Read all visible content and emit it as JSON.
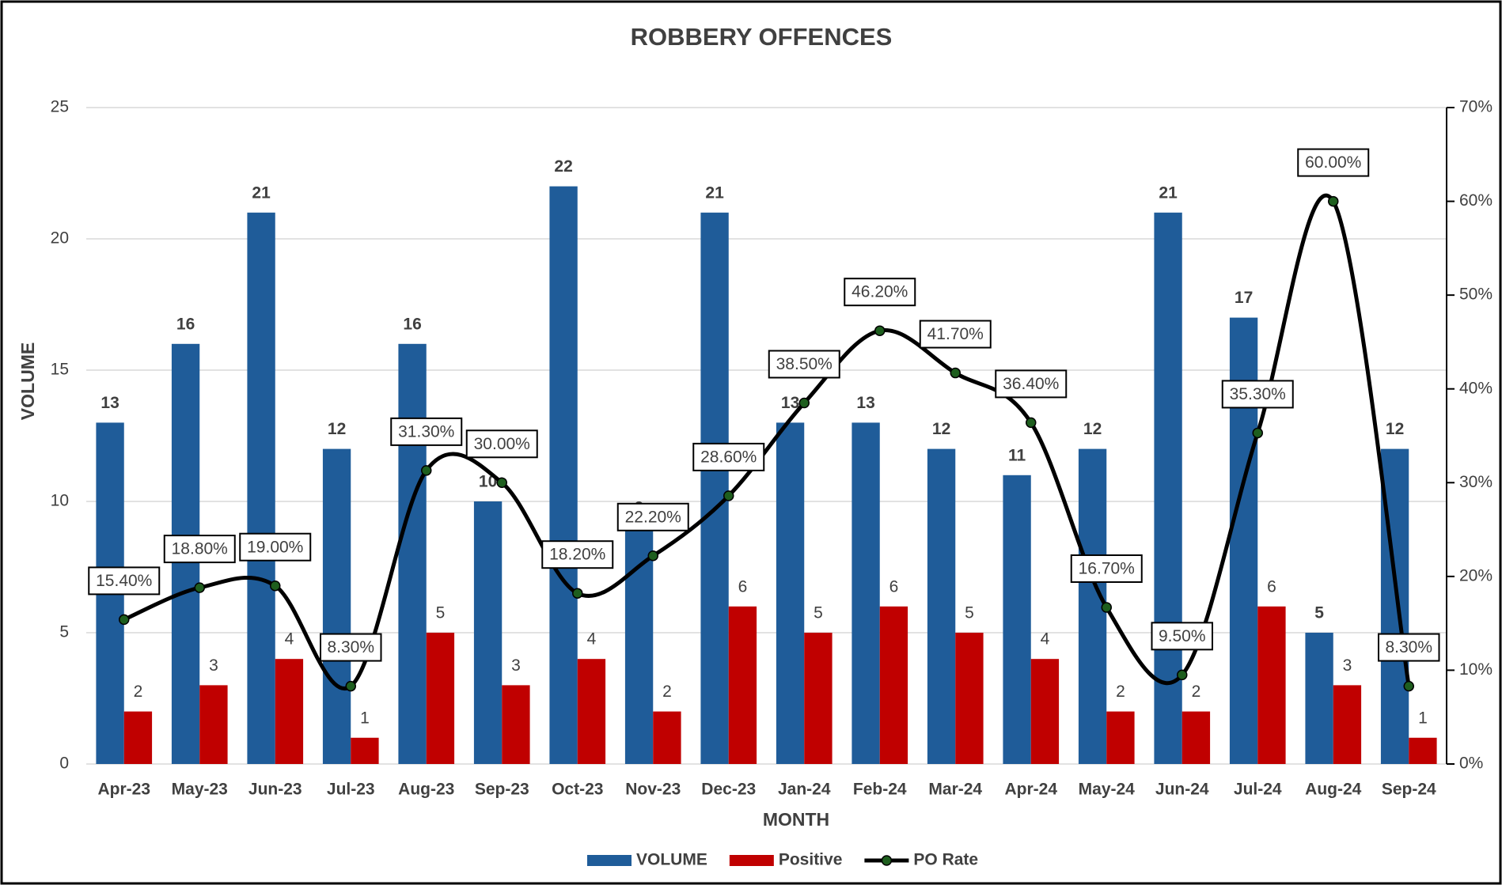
{
  "chart_data": {
    "type": "bar",
    "title": "ROBBERY OFFENCES",
    "x_label": "MONTH",
    "y_label": "VOLUME",
    "categories": [
      "Apr-23",
      "May-23",
      "Jun-23",
      "Jul-23",
      "Aug-23",
      "Sep-23",
      "Oct-23",
      "Nov-23",
      "Dec-23",
      "Jan-24",
      "Feb-24",
      "Mar-24",
      "Apr-24",
      "May-24",
      "Jun-24",
      "Jul-24",
      "Aug-24",
      "Sep-24"
    ],
    "series": [
      {
        "name": "VOLUME",
        "type": "bar",
        "color": "#1f5c99",
        "values": [
          13,
          16,
          21,
          12,
          16,
          10,
          22,
          9,
          21,
          13,
          13,
          12,
          11,
          12,
          21,
          17,
          5,
          12
        ]
      },
      {
        "name": "Positive",
        "type": "bar",
        "color": "#c00000",
        "values": [
          2,
          3,
          4,
          1,
          5,
          3,
          4,
          2,
          6,
          5,
          6,
          5,
          4,
          2,
          2,
          6,
          3,
          1
        ]
      },
      {
        "name": "PO Rate",
        "type": "line",
        "axis": "y2",
        "color": "#000000",
        "marker_color": "#1e5e1e",
        "values": [
          15.4,
          18.8,
          19.0,
          8.3,
          31.3,
          30.0,
          18.2,
          22.2,
          28.6,
          38.5,
          46.2,
          41.7,
          36.4,
          16.7,
          9.5,
          35.3,
          60.0,
          8.3
        ],
        "value_labels": [
          "15.40%",
          "18.80%",
          "19.00%",
          "8.30%",
          "31.30%",
          "30.00%",
          "18.20%",
          "22.20%",
          "28.60%",
          "38.50%",
          "46.20%",
          "41.70%",
          "36.40%",
          "16.70%",
          "9.50%",
          "35.30%",
          "60.00%",
          "8.30%"
        ]
      }
    ],
    "ylim": [
      0,
      25
    ],
    "yticks": [
      0,
      5,
      10,
      15,
      20,
      25
    ],
    "y2lim": [
      0,
      70
    ],
    "y2ticks": [
      {
        "value": 0,
        "label": "0%"
      },
      {
        "value": 10,
        "label": "10%"
      },
      {
        "value": 20,
        "label": "20%"
      },
      {
        "value": 30,
        "label": "30%"
      },
      {
        "value": 40,
        "label": "40%"
      },
      {
        "value": 50,
        "label": "50%"
      },
      {
        "value": 60,
        "label": "60%"
      },
      {
        "value": 70,
        "label": "70%"
      }
    ],
    "grid": true,
    "legend": "bottom"
  }
}
